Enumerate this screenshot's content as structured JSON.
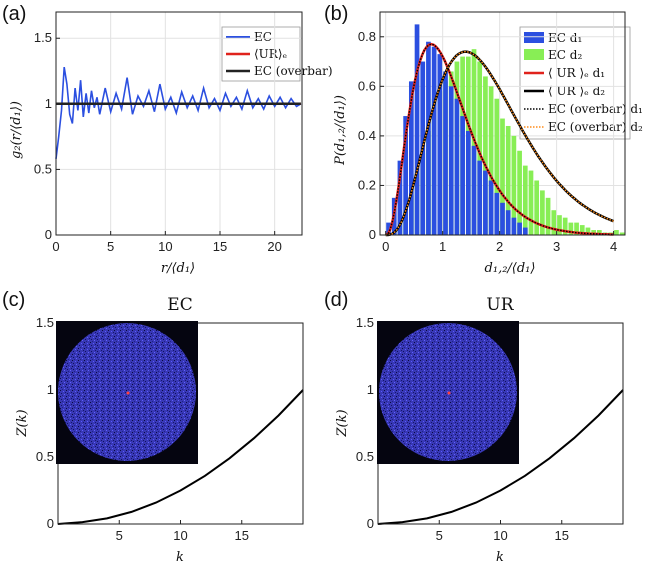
{
  "chart_data": [
    {
      "panel_label": "(a)",
      "type": "line",
      "title": "",
      "xlabel": "r/⟨d₁⟩",
      "ylabel": "g₂(r/⟨d₁⟩)",
      "xlim": [
        0,
        22.5
      ],
      "ylim": [
        0,
        1.7
      ],
      "xticks": [
        0,
        5,
        10,
        15,
        20
      ],
      "yticks": [
        0,
        0.5,
        1,
        1.5
      ],
      "xtick_labels": [
        "0",
        "5",
        "10",
        "15",
        "20"
      ],
      "ytick_labels": [
        "0",
        "0.5",
        "1",
        "1.5"
      ],
      "grid": true,
      "legend_position": "top-right",
      "series": [
        {
          "name": "EC",
          "legend": "EC",
          "color": "#2b4fe0",
          "x": [
            0,
            0.25,
            0.5,
            0.75,
            1.0,
            1.25,
            1.5,
            1.75,
            2.0,
            2.25,
            2.5,
            2.75,
            3.0,
            3.25,
            3.5,
            3.75,
            4.0,
            4.5,
            5.0,
            5.5,
            6.0,
            6.5,
            7.0,
            7.5,
            8.0,
            8.5,
            9.0,
            9.5,
            10.0,
            10.5,
            11.0,
            11.5,
            12.0,
            12.5,
            13.0,
            13.5,
            14.0,
            14.5,
            15.0,
            15.5,
            16.0,
            16.5,
            17.0,
            17.5,
            18.0,
            18.5,
            19.0,
            19.5,
            20.0,
            20.5,
            21.0,
            21.5,
            22.0,
            22.4
          ],
          "values": [
            0.58,
            0.75,
            0.95,
            1.28,
            1.15,
            0.92,
            0.85,
            1.12,
            0.95,
            1.18,
            0.9,
            1.08,
            0.93,
            1.1,
            0.97,
            1.05,
            0.92,
            1.12,
            0.94,
            1.08,
            0.96,
            1.2,
            0.92,
            1.06,
            0.98,
            1.1,
            0.94,
            1.15,
            0.96,
            1.05,
            0.93,
            1.09,
            0.97,
            1.06,
            0.95,
            1.12,
            0.97,
            1.04,
            0.95,
            1.08,
            0.98,
            1.05,
            0.96,
            1.1,
            0.97,
            1.04,
            0.96,
            1.06,
            0.98,
            1.05,
            0.97,
            1.04,
            0.98,
            1.0
          ]
        },
        {
          "name": "UR_e",
          "legend": "⟨UR⟩ₑ",
          "color": "#e0221c",
          "x": [
            0,
            5,
            10,
            15,
            20,
            22.4
          ],
          "values": [
            1,
            1,
            1,
            1,
            1,
            1
          ]
        },
        {
          "name": "EC_bar",
          "legend": "EC (overbar)",
          "color": "#222222",
          "x": [
            0,
            5,
            10,
            15,
            20,
            22.4
          ],
          "values": [
            1,
            1,
            1,
            1,
            1,
            1
          ]
        }
      ]
    },
    {
      "panel_label": "(b)",
      "type": "bar",
      "title": "",
      "xlabel": "d₁,₂/⟨d₁⟩",
      "ylabel": "P(d₁,₂/⟨d₁⟩)",
      "xlim": [
        -0.1,
        4.2
      ],
      "ylim": [
        0,
        0.9
      ],
      "xticks": [
        0,
        1,
        2,
        3,
        4
      ],
      "yticks": [
        0,
        0.2,
        0.4,
        0.6,
        0.8
      ],
      "xtick_labels": [
        "0",
        "1",
        "2",
        "3",
        "4"
      ],
      "ytick_labels": [
        "0",
        "0.2",
        "0.4",
        "0.6",
        "0.8"
      ],
      "grid": true,
      "legend_position": "top-right",
      "bin_width": 0.1,
      "series": [
        {
          "name": "EC d1",
          "legend": "EC d₁",
          "color": "#2b4fe0",
          "x": [
            0.05,
            0.15,
            0.25,
            0.35,
            0.45,
            0.55,
            0.65,
            0.75,
            0.85,
            0.95,
            1.05,
            1.15,
            1.25,
            1.35,
            1.45,
            1.55,
            1.65,
            1.75,
            1.85,
            1.95,
            2.05,
            2.15,
            2.25,
            2.35,
            2.45
          ],
          "values": [
            0.05,
            0.15,
            0.3,
            0.48,
            0.62,
            0.85,
            0.7,
            0.78,
            0.76,
            0.73,
            0.66,
            0.6,
            0.55,
            0.48,
            0.42,
            0.36,
            0.3,
            0.26,
            0.22,
            0.17,
            0.13,
            0.1,
            0.07,
            0.05,
            0.03
          ]
        },
        {
          "name": "EC d2",
          "legend": "EC d₂",
          "color": "#88ee55",
          "x": [
            0.15,
            0.25,
            0.35,
            0.45,
            0.55,
            0.65,
            0.75,
            0.85,
            0.95,
            1.05,
            1.15,
            1.25,
            1.35,
            1.45,
            1.55,
            1.65,
            1.75,
            1.85,
            1.95,
            2.05,
            2.15,
            2.25,
            2.35,
            2.45,
            2.55,
            2.65,
            2.75,
            2.85,
            2.95,
            3.05,
            3.15,
            3.25,
            3.35,
            3.45,
            3.55,
            3.65,
            3.75,
            3.85,
            3.95,
            4.05,
            4.15
          ],
          "values": [
            0.02,
            0.05,
            0.1,
            0.16,
            0.25,
            0.33,
            0.42,
            0.55,
            0.58,
            0.62,
            0.66,
            0.7,
            0.72,
            0.72,
            0.75,
            0.7,
            0.64,
            0.6,
            0.55,
            0.47,
            0.44,
            0.4,
            0.34,
            0.28,
            0.26,
            0.22,
            0.18,
            0.15,
            0.1,
            0.08,
            0.07,
            0.05,
            0.05,
            0.04,
            0.03,
            0.02,
            0.02,
            0.01,
            0.01,
            0.02,
            0.01
          ]
        },
        {
          "name": "UR_e d1",
          "legend": "⟨ UR ⟩ₑ d₁",
          "color": "#e0221c",
          "peak_x": 0.8,
          "peak_y": 0.77
        },
        {
          "name": "UR_e d2",
          "legend": "⟨ UR ⟩ₑ d₂",
          "color": "#000000",
          "peak_x": 1.4,
          "peak_y": 0.74
        },
        {
          "name": "EC_bar d1",
          "legend": "EC (overbar) d₁",
          "color": "#000000",
          "style": "dotted"
        },
        {
          "name": "EC_bar d2",
          "legend": "EC (overbar) d₂",
          "color": "#ff8c1a",
          "style": "dotted"
        }
      ]
    },
    {
      "panel_label": "(c)",
      "type": "line",
      "title": "EC",
      "xlabel": "k",
      "ylabel": "Z(k)",
      "xlim": [
        0,
        20
      ],
      "ylim": [
        0,
        1.5
      ],
      "xticks": [
        5,
        10,
        15
      ],
      "yticks": [
        0,
        0.5,
        1,
        1.5
      ],
      "xtick_labels": [
        "5",
        "10",
        "15"
      ],
      "ytick_labels": [
        "0",
        "0.5",
        "1",
        "1.5"
      ],
      "grid": false,
      "series": [
        {
          "name": "Z(k)",
          "color": "#000000",
          "x": [
            0,
            2,
            4,
            6,
            8,
            10,
            12,
            14,
            16,
            18,
            20
          ],
          "values": [
            0,
            0.014,
            0.042,
            0.09,
            0.16,
            0.25,
            0.36,
            0.49,
            0.64,
            0.81,
            1.0
          ]
        }
      ]
    },
    {
      "panel_label": "(d)",
      "type": "line",
      "title": "UR",
      "xlabel": "k",
      "ylabel": "Z(k)",
      "xlim": [
        0,
        20
      ],
      "ylim": [
        0,
        1.5
      ],
      "xticks": [
        5,
        10,
        15
      ],
      "yticks": [
        0,
        0.5,
        1,
        1.5
      ],
      "xtick_labels": [
        "5",
        "10",
        "15"
      ],
      "ytick_labels": [
        "0",
        "0.5",
        "1",
        "1.5"
      ],
      "grid": false,
      "series": [
        {
          "name": "Z(k)",
          "color": "#000000",
          "x": [
            0,
            2,
            4,
            6,
            8,
            10,
            12,
            14,
            16,
            18,
            20
          ],
          "values": [
            0,
            0.014,
            0.042,
            0.09,
            0.16,
            0.25,
            0.36,
            0.49,
            0.64,
            0.81,
            1.0
          ]
        }
      ]
    }
  ],
  "colors": {
    "ec_blue": "#2b4fe0",
    "ec_green": "#88ee55",
    "ur_red": "#e0221c",
    "inset_bg": "#050510",
    "disc": "#3a3ab8"
  }
}
